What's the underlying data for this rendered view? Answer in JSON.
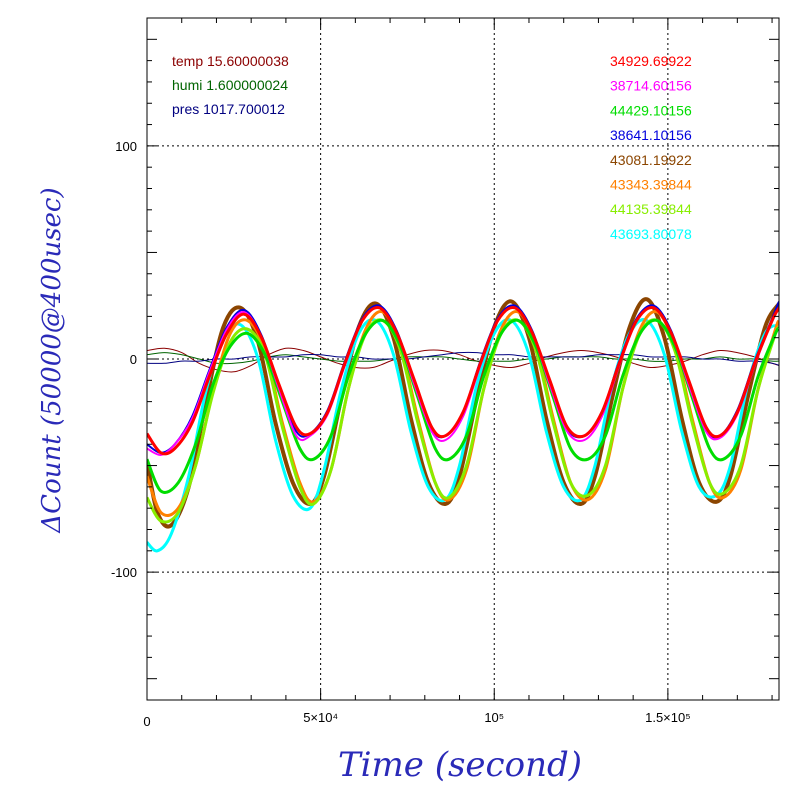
{
  "chart_data": {
    "type": "line",
    "xlabel": "Time (second)",
    "ylabel": "ΔCount (50000@400usec)",
    "xlim": [
      0,
      182000
    ],
    "ylim": [
      -160,
      160
    ],
    "grid": true,
    "x_ticks": [
      {
        "value": 0,
        "label": "0"
      },
      {
        "value": 50000,
        "label": "5×10⁴"
      },
      {
        "value": 100000,
        "label": "10⁵"
      },
      {
        "value": 150000,
        "label": "1.5×10⁵"
      }
    ],
    "y_ticks": [
      {
        "value": 100,
        "label": "100"
      },
      {
        "value": 0,
        "label": "0"
      },
      {
        "value": -100,
        "label": "-100"
      }
    ],
    "env_legend": [
      {
        "text": "temp 15.60000038",
        "color": "#8b0000"
      },
      {
        "text": "humi 1.600000024",
        "color": "#006400"
      },
      {
        "text": "pres 1017.700012",
        "color": "#000080"
      }
    ],
    "series": [
      {
        "name": "34929.69922",
        "color": "#ff0000",
        "width": 3,
        "x": [
          0,
          4000,
          8000,
          13000,
          18000,
          23000,
          28000,
          33000,
          38000,
          43000,
          47000,
          52000,
          57000,
          62000,
          67000,
          72000,
          77000,
          82000,
          86000,
          91000,
          96000,
          101000,
          106000,
          111000,
          116000,
          121000,
          126000,
          131000,
          136000,
          141000,
          146000,
          151000,
          156000,
          161000,
          165000,
          170000,
          175000,
          180000,
          182000
        ],
        "y": [
          -35,
          -44,
          -42,
          -30,
          -8,
          12,
          21,
          10,
          -12,
          -32,
          -35,
          -25,
          -2,
          18,
          24,
          12,
          -10,
          -32,
          -36,
          -25,
          -2,
          18,
          24,
          12,
          -10,
          -32,
          -36,
          -25,
          -2,
          18,
          24,
          12,
          -10,
          -32,
          -36,
          -25,
          -2,
          18,
          24
        ]
      },
      {
        "name": "38714.60156",
        "color": "#ff00ff",
        "width": 2,
        "x": [
          0,
          4000,
          8000,
          13000,
          18000,
          23000,
          28000,
          33000,
          38000,
          43000,
          47000,
          52000,
          57000,
          62000,
          67000,
          72000,
          77000,
          82000,
          86000,
          91000,
          96000,
          101000,
          106000,
          111000,
          116000,
          121000,
          126000,
          131000,
          136000,
          141000,
          146000,
          151000,
          156000,
          161000,
          165000,
          170000,
          175000,
          180000,
          182000
        ],
        "y": [
          -42,
          -45,
          -40,
          -28,
          -6,
          14,
          22,
          10,
          -14,
          -36,
          -36,
          -26,
          -3,
          18,
          24,
          12,
          -12,
          -34,
          -38,
          -27,
          -3,
          18,
          24,
          12,
          -12,
          -34,
          -38,
          -27,
          -3,
          18,
          24,
          12,
          -12,
          -34,
          -37,
          -26,
          -3,
          18,
          24
        ]
      },
      {
        "name": "44429.10156",
        "color": "#00dd00",
        "width": 3,
        "x": [
          0,
          4000,
          9000,
          14000,
          19000,
          24000,
          29000,
          34000,
          39000,
          44000,
          48000,
          53000,
          58000,
          63000,
          68000,
          73000,
          78000,
          83000,
          87000,
          92000,
          97000,
          102000,
          107000,
          112000,
          117000,
          122000,
          127000,
          132000,
          137000,
          142000,
          147000,
          152000,
          157000,
          162000,
          166000,
          171000,
          176000,
          181000,
          182000
        ],
        "y": [
          -47,
          -62,
          -58,
          -40,
          -12,
          6,
          12,
          2,
          -20,
          -42,
          -47,
          -36,
          -8,
          12,
          18,
          6,
          -18,
          -42,
          -47,
          -36,
          -8,
          12,
          18,
          6,
          -18,
          -42,
          -47,
          -36,
          -8,
          12,
          18,
          6,
          -18,
          -42,
          -47,
          -36,
          -8,
          12,
          14
        ]
      },
      {
        "name": "38641.10156",
        "color": "#0000dd",
        "width": 2,
        "x": [
          0,
          4000,
          8000,
          13000,
          18000,
          23000,
          28000,
          33000,
          38000,
          43000,
          47000,
          52000,
          57000,
          62000,
          67000,
          72000,
          77000,
          82000,
          86000,
          91000,
          96000,
          101000,
          106000,
          111000,
          116000,
          121000,
          126000,
          131000,
          136000,
          141000,
          146000,
          151000,
          156000,
          161000,
          165000,
          170000,
          175000,
          180000,
          182000
        ],
        "y": [
          -40,
          -44,
          -40,
          -27,
          -5,
          15,
          23,
          11,
          -13,
          -34,
          -35,
          -24,
          -1,
          19,
          25,
          13,
          -11,
          -33,
          -36,
          -25,
          -1,
          19,
          25,
          13,
          -11,
          -33,
          -36,
          -25,
          -1,
          19,
          25,
          13,
          -11,
          -33,
          -36,
          -24,
          -1,
          19,
          27
        ]
      },
      {
        "name": "43081.19922",
        "color": "#8b4500",
        "width": 4,
        "x": [
          0,
          3000,
          7000,
          12000,
          17000,
          22000,
          27000,
          32000,
          37000,
          42000,
          47000,
          51000,
          56000,
          61000,
          66000,
          71000,
          76000,
          81000,
          86000,
          90000,
          95000,
          100000,
          105000,
          110000,
          115000,
          120000,
          125000,
          129000,
          134000,
          139000,
          144000,
          149000,
          154000,
          159000,
          164000,
          168000,
          173000,
          178000,
          182000
        ],
        "y": [
          -48,
          -72,
          -78,
          -60,
          -20,
          15,
          24,
          8,
          -30,
          -58,
          -68,
          -55,
          -18,
          15,
          26,
          10,
          -28,
          -58,
          -68,
          -55,
          -18,
          15,
          27,
          10,
          -28,
          -58,
          -68,
          -55,
          -18,
          15,
          28,
          10,
          -28,
          -58,
          -67,
          -55,
          -18,
          15,
          26
        ]
      },
      {
        "name": "43343.39844",
        "color": "#ff8000",
        "width": 3,
        "x": [
          0,
          4000,
          9000,
          14000,
          19000,
          24000,
          29000,
          34000,
          39000,
          44000,
          48000,
          53000,
          58000,
          63000,
          68000,
          73000,
          78000,
          83000,
          87000,
          92000,
          97000,
          102000,
          107000,
          112000,
          117000,
          122000,
          127000,
          132000,
          137000,
          142000,
          147000,
          152000,
          157000,
          162000,
          166000,
          171000,
          176000,
          181000,
          182000
        ],
        "y": [
          -55,
          -72,
          -70,
          -50,
          -15,
          12,
          18,
          4,
          -30,
          -58,
          -67,
          -52,
          -14,
          14,
          22,
          6,
          -28,
          -58,
          -66,
          -52,
          -14,
          14,
          22,
          6,
          -28,
          -58,
          -66,
          -52,
          -14,
          14,
          22,
          6,
          -28,
          -58,
          -65,
          -52,
          -14,
          14,
          18
        ]
      },
      {
        "name": "44135.39844",
        "color": "#88ee00",
        "width": 3,
        "x": [
          0,
          4000,
          9000,
          14000,
          19000,
          24000,
          29000,
          34000,
          39000,
          44000,
          48000,
          53000,
          58000,
          63000,
          68000,
          73000,
          78000,
          83000,
          87000,
          92000,
          97000,
          102000,
          107000,
          112000,
          117000,
          122000,
          127000,
          132000,
          137000,
          142000,
          147000,
          152000,
          157000,
          162000,
          166000,
          171000,
          176000,
          181000,
          182000
        ],
        "y": [
          -65,
          -76,
          -72,
          -50,
          -16,
          8,
          14,
          2,
          -32,
          -60,
          -68,
          -52,
          -14,
          12,
          18,
          4,
          -30,
          -58,
          -65,
          -50,
          -14,
          12,
          18,
          4,
          -30,
          -58,
          -64,
          -50,
          -14,
          12,
          18,
          4,
          -30,
          -58,
          -63,
          -50,
          -14,
          12,
          14
        ]
      },
      {
        "name": "43693.80078",
        "color": "#00ffff",
        "width": 3,
        "x": [
          0,
          3000,
          7000,
          12000,
          17000,
          22000,
          27000,
          32000,
          37000,
          42000,
          47000,
          51000,
          56000,
          61000,
          66000,
          71000,
          76000,
          81000,
          86000,
          90000,
          95000,
          100000,
          105000,
          110000,
          115000,
          120000,
          125000,
          129000,
          134000,
          139000,
          144000,
          149000,
          154000,
          159000,
          164000,
          168000,
          173000,
          178000,
          182000
        ],
        "y": [
          -86,
          -90,
          -82,
          -55,
          -15,
          10,
          16,
          0,
          -38,
          -64,
          -70,
          -52,
          -14,
          12,
          18,
          2,
          -34,
          -60,
          -66,
          -50,
          -12,
          12,
          18,
          2,
          -34,
          -60,
          -66,
          -50,
          -12,
          12,
          18,
          2,
          -34,
          -60,
          -64,
          -50,
          -12,
          12,
          16
        ]
      },
      {
        "name": "",
        "color": "#8b0000",
        "width": 1,
        "x": [
          0,
          5000,
          10000,
          15000,
          20000,
          25000,
          30000,
          35000,
          40000,
          45000,
          50000,
          55000,
          60000,
          65000,
          70000,
          75000,
          80000,
          85000,
          90000,
          95000,
          100000,
          105000,
          110000,
          115000,
          120000,
          125000,
          130000,
          135000,
          140000,
          145000,
          150000,
          155000,
          160000,
          165000,
          170000,
          175000,
          180000,
          182000
        ],
        "y": [
          4,
          5,
          3,
          -2,
          -5,
          -6,
          -3,
          2,
          5,
          4,
          1,
          -2,
          -4,
          -4,
          -1,
          2,
          4,
          4,
          2,
          -1,
          -3,
          -4,
          -2,
          1,
          3,
          4,
          3,
          1,
          -2,
          -4,
          -3,
          -1,
          2,
          4,
          3,
          1,
          -2,
          -3
        ]
      },
      {
        "name": "",
        "color": "#006400",
        "width": 1,
        "x": [
          0,
          5000,
          10000,
          15000,
          20000,
          25000,
          30000,
          35000,
          40000,
          45000,
          50000,
          55000,
          60000,
          65000,
          70000,
          75000,
          80000,
          85000,
          90000,
          95000,
          100000,
          105000,
          110000,
          115000,
          120000,
          125000,
          130000,
          135000,
          140000,
          145000,
          150000,
          155000,
          160000,
          165000,
          170000,
          175000,
          180000,
          182000
        ],
        "y": [
          2,
          3,
          2,
          0,
          -2,
          -2,
          -1,
          1,
          2,
          1,
          0,
          -1,
          -1,
          -1,
          0,
          1,
          1,
          1,
          0,
          -1,
          -1,
          -1,
          0,
          0,
          1,
          1,
          1,
          0,
          0,
          -1,
          -1,
          0,
          0,
          1,
          0,
          0,
          -1,
          -1
        ]
      },
      {
        "name": "",
        "color": "#000080",
        "width": 1,
        "x": [
          0,
          5000,
          10000,
          15000,
          20000,
          25000,
          30000,
          35000,
          40000,
          45000,
          50000,
          55000,
          60000,
          65000,
          70000,
          75000,
          80000,
          85000,
          90000,
          95000,
          100000,
          105000,
          110000,
          115000,
          120000,
          125000,
          130000,
          135000,
          140000,
          145000,
          150000,
          155000,
          160000,
          165000,
          170000,
          175000,
          180000,
          182000
        ],
        "y": [
          -2,
          -2,
          -1,
          -1,
          0,
          0,
          1,
          1,
          1,
          2,
          2,
          1,
          1,
          0,
          0,
          0,
          1,
          2,
          3,
          3,
          2,
          2,
          1,
          1,
          1,
          1,
          2,
          2,
          2,
          1,
          1,
          1,
          0,
          0,
          -1,
          -1,
          -2,
          -3
        ]
      }
    ]
  }
}
